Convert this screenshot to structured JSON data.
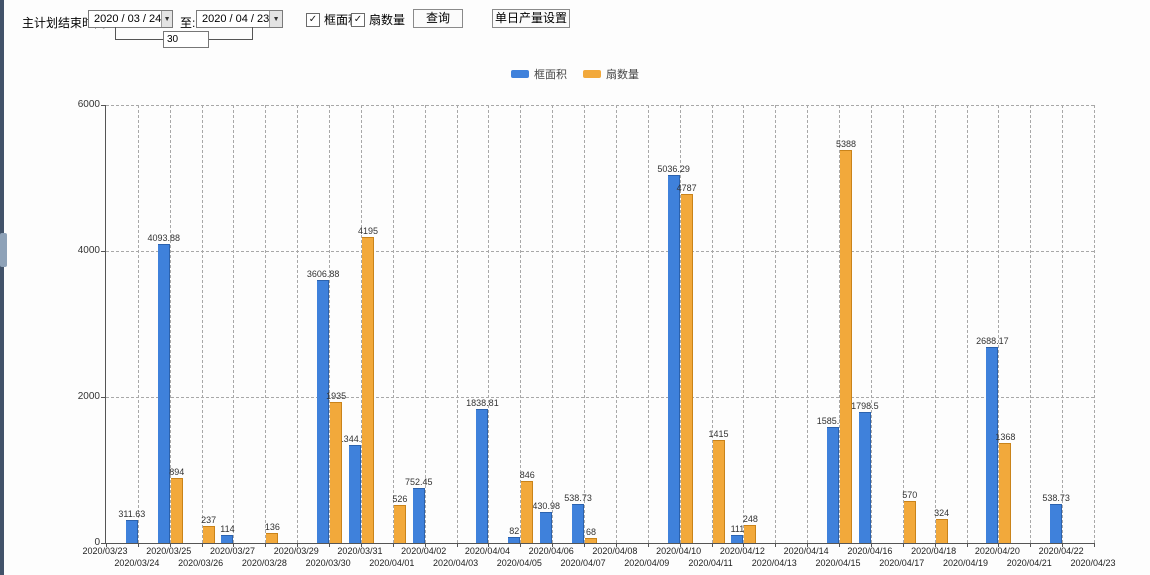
{
  "toolbar": {
    "label": "主计划结束时间:",
    "date_from": "2020 / 03 / 24",
    "to_label": "至:",
    "date_to": "2020 / 04 / 23",
    "interval_value": "30",
    "checkbox_area_label": "框面积",
    "checkbox_fan_label": "扇数量",
    "query_label": "查询",
    "daily_output_label": "单日产量设置"
  },
  "icons": {
    "dropdown_arrow": "▼",
    "checkmark": "✓"
  },
  "legend": {
    "items": [
      {
        "label": "框面积",
        "color": "#3F81DB"
      },
      {
        "label": "扇数量",
        "color": "#F2A93B"
      }
    ]
  },
  "chart_data": {
    "type": "bar",
    "title": "",
    "xlabel": "",
    "ylabel": "",
    "ylim": [
      0,
      6000
    ],
    "yticks": [
      0,
      2000,
      4000,
      6000
    ],
    "grid": true,
    "legend_position": "top",
    "categories": [
      "2020/03/23",
      "2020/03/24",
      "2020/03/25",
      "2020/03/26",
      "2020/03/27",
      "2020/03/28",
      "2020/03/29",
      "2020/03/30",
      "2020/03/31",
      "2020/04/01",
      "2020/04/02",
      "2020/04/03",
      "2020/04/04",
      "2020/04/05",
      "2020/04/06",
      "2020/04/07",
      "2020/04/08",
      "2020/04/09",
      "2020/04/10",
      "2020/04/11",
      "2020/04/12",
      "2020/04/13",
      "2020/04/14",
      "2020/04/15",
      "2020/04/16",
      "2020/04/17",
      "2020/04/18",
      "2020/04/19",
      "2020/04/20",
      "2020/04/21",
      "2020/04/22",
      "2020/04/23"
    ],
    "series": [
      {
        "name": "框面积",
        "color": "#3F81DB",
        "border_color": "#2B62AE",
        "values": [
          null,
          311.63,
          4093.88,
          null,
          114,
          null,
          null,
          3606.88,
          1344.95,
          null,
          752.45,
          null,
          1838.81,
          82,
          430.98,
          538.73,
          null,
          null,
          5036.29,
          null,
          111,
          null,
          null,
          1585.96,
          1798.5,
          null,
          null,
          null,
          2688.17,
          null,
          538.73,
          null
        ]
      },
      {
        "name": "扇数量",
        "color": "#F2A93B",
        "border_color": "#C9831A",
        "values": [
          null,
          null,
          894,
          237,
          null,
          136,
          null,
          1935,
          4195,
          526,
          null,
          null,
          null,
          846,
          null,
          68,
          null,
          null,
          4787,
          1415,
          248,
          null,
          null,
          5388,
          null,
          570,
          324,
          null,
          1368,
          null,
          null,
          null
        ]
      }
    ]
  }
}
